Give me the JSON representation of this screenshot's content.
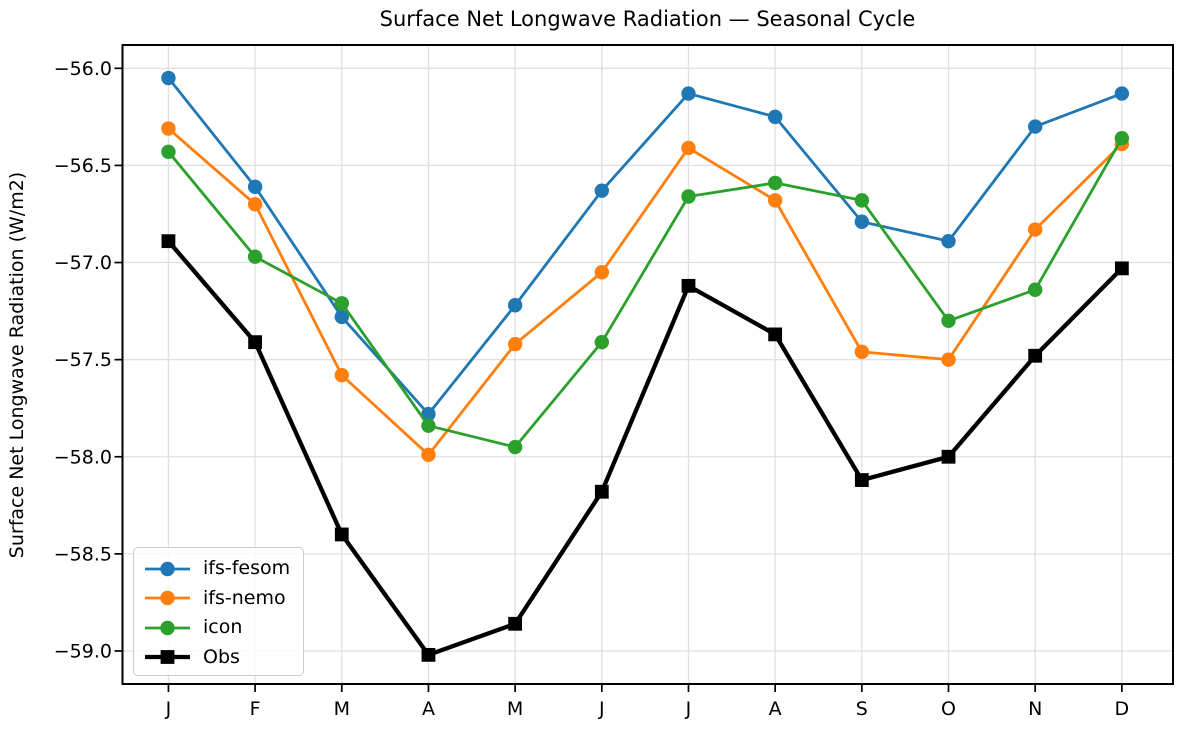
{
  "chart_data": {
    "type": "line",
    "title": "Surface Net Longwave Radiation — Seasonal Cycle",
    "xlabel": "",
    "ylabel": "Surface Net Longwave Radiation (W/m2)",
    "categories": [
      "J",
      "F",
      "M",
      "A",
      "M",
      "J",
      "J",
      "A",
      "S",
      "O",
      "N",
      "D"
    ],
    "series": [
      {
        "name": "ifs-fesom",
        "color": "#1f77b4",
        "marker": "circle",
        "line_width": 2.8,
        "values": [
          -56.05,
          -56.61,
          -57.28,
          -57.78,
          -57.22,
          -56.63,
          -56.13,
          -56.25,
          -56.79,
          -56.89,
          -56.3,
          -56.13
        ]
      },
      {
        "name": "ifs-nemo",
        "color": "#ff7f0e",
        "marker": "circle",
        "line_width": 2.8,
        "values": [
          -56.31,
          -56.7,
          -57.58,
          -57.99,
          -57.42,
          -57.05,
          -56.41,
          -56.68,
          -57.46,
          -57.5,
          -56.83,
          -56.39
        ]
      },
      {
        "name": "icon",
        "color": "#2ca02c",
        "marker": "circle",
        "line_width": 2.8,
        "values": [
          -56.43,
          -56.97,
          -57.21,
          -57.84,
          -57.95,
          -57.41,
          -56.66,
          -56.59,
          -56.68,
          -57.3,
          -57.14,
          -56.36
        ]
      },
      {
        "name": "Obs",
        "color": "#000000",
        "marker": "square",
        "line_width": 4.3,
        "values": [
          -56.89,
          -57.41,
          -58.4,
          -59.02,
          -58.86,
          -58.18,
          -57.12,
          -57.37,
          -58.12,
          -58.0,
          -57.48,
          -57.03
        ]
      }
    ],
    "yticks": [
      -56.0,
      -56.5,
      -57.0,
      -57.5,
      -58.0,
      -58.5,
      -59.0
    ],
    "ytick_labels": [
      "−56.0",
      "−56.5",
      "−57.0",
      "−57.5",
      "−58.0",
      "−58.5",
      "−59.0"
    ],
    "ylim": [
      -59.17,
      -55.88
    ],
    "xlim": [
      -0.53,
      11.59
    ],
    "grid": true,
    "grid_color": "#e0e0e0",
    "axis_color": "#000000",
    "background_color": "#ffffff",
    "legend": {
      "position": "lower left",
      "border_color": "#cccccc"
    }
  }
}
